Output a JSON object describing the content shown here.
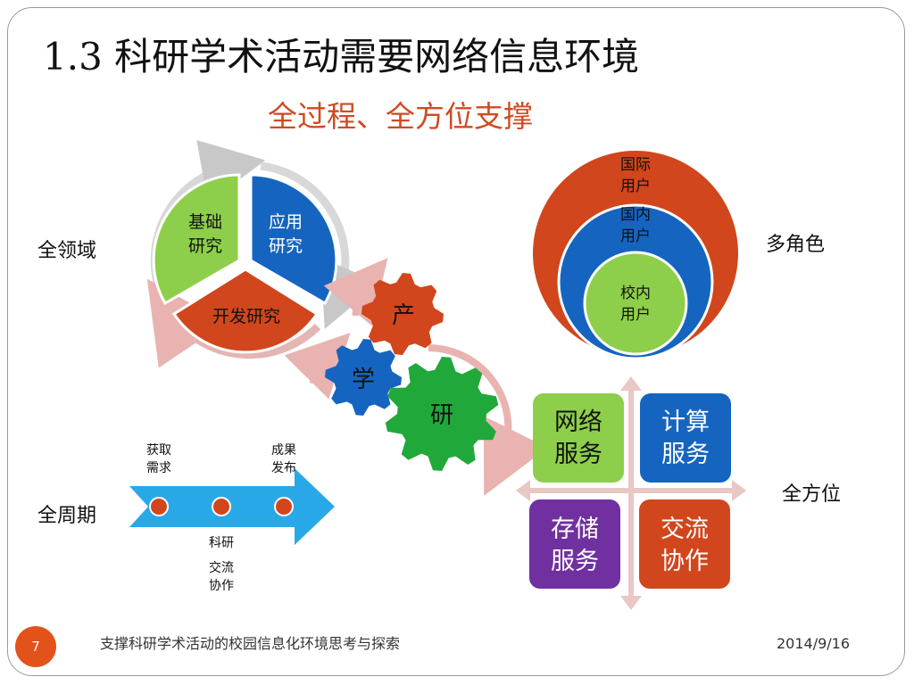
{
  "slide": {
    "title": "1.3 科研学术活动需要网络信息环境",
    "subtitle": "全过程、全方位支撑",
    "labels": {
      "domain": "全领域",
      "roles": "多角色",
      "lifecycle": "全周期",
      "all_directions": "全方位"
    },
    "cycle": {
      "basic_research": [
        "基础",
        "研究"
      ],
      "applied_research": [
        "应用",
        "研究"
      ],
      "development_research": "开发研究"
    },
    "gears": {
      "industry": "产",
      "study": "学",
      "research": "研"
    },
    "users": {
      "international": [
        "国际",
        "用户"
      ],
      "domestic": [
        "国内",
        "用户"
      ],
      "campus": [
        "校内",
        "用户"
      ]
    },
    "services": {
      "network": [
        "网络",
        "服务"
      ],
      "compute": [
        "计算",
        "服务"
      ],
      "storage": [
        "存储",
        "服务"
      ],
      "collaboration": [
        "交流",
        "协作"
      ]
    },
    "timeline": {
      "acquire": [
        "获取",
        "需求"
      ],
      "publish": [
        "成果",
        "发布"
      ],
      "research": "科研",
      "exchange": [
        "交流",
        "协作"
      ]
    },
    "footer": {
      "page_number": "7",
      "text": "支撑科研学术活动的校园信息化环境思考与探索",
      "date": "2014/9/16"
    }
  },
  "colors": {
    "accent_red": "#e3521b",
    "green": "#8dcf4a",
    "blue": "#1565c0",
    "orange_red": "#d1461c",
    "gear_green": "#21a83a",
    "purple": "#7030a0",
    "arrow_blue": "#29a8e8",
    "pink_arrow": "#e8b3b0"
  }
}
